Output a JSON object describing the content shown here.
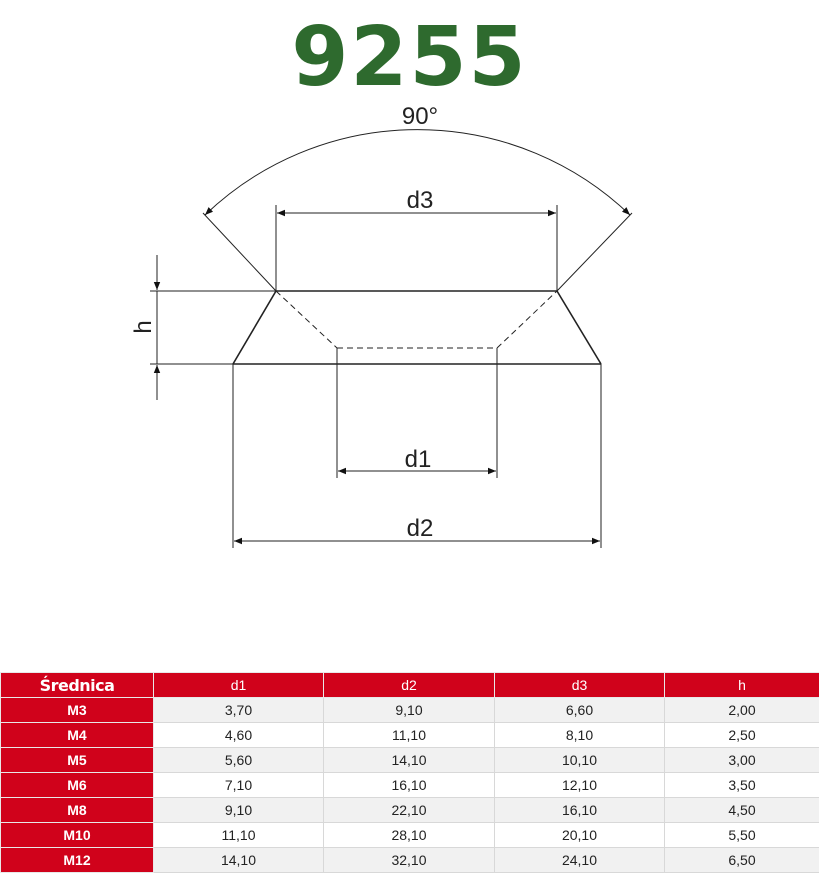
{
  "title": "9255",
  "diagram": {
    "angle_label": "90°",
    "labels": {
      "d1": "d1",
      "d2": "d2",
      "d3": "d3",
      "h": "h"
    }
  },
  "table": {
    "headers": [
      "Średnica",
      "d1",
      "d2",
      "d3",
      "h"
    ],
    "rows": [
      [
        "M3",
        "3,70",
        "9,10",
        "6,60",
        "2,00"
      ],
      [
        "M4",
        "4,60",
        "11,10",
        "8,10",
        "2,50"
      ],
      [
        "M5",
        "5,60",
        "14,10",
        "10,10",
        "3,00"
      ],
      [
        "M6",
        "7,10",
        "16,10",
        "12,10",
        "3,50"
      ],
      [
        "M8",
        "9,10",
        "22,10",
        "16,10",
        "4,50"
      ],
      [
        "M10",
        "11,10",
        "28,10",
        "20,10",
        "5,50"
      ],
      [
        "M12",
        "14,10",
        "32,10",
        "24,10",
        "6,50"
      ]
    ]
  },
  "colors": {
    "title": "#2e6a2e",
    "header": "#d0021b"
  }
}
